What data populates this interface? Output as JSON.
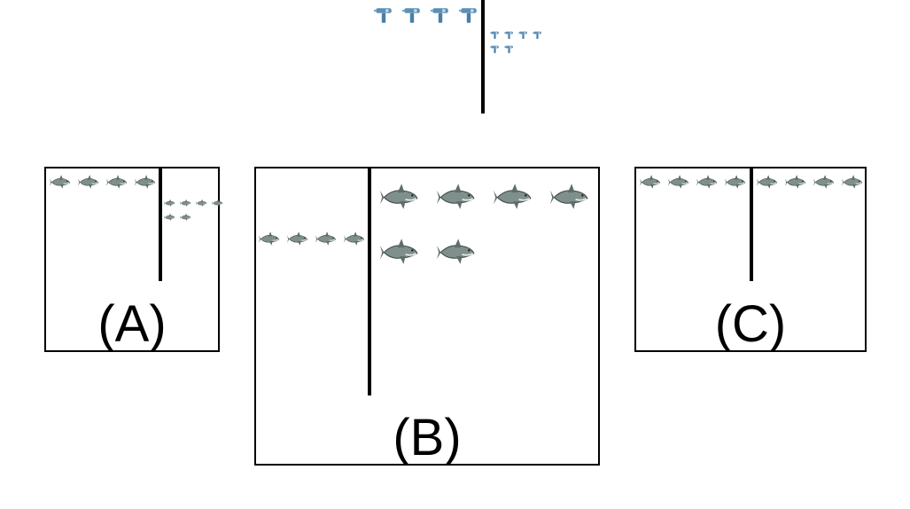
{
  "top": {
    "item_icon": "drill-icon",
    "left_group_count": 4,
    "right_group_count": 6
  },
  "panels": [
    {
      "id": "A",
      "label": "(A)",
      "item_icon": "shark-icon",
      "left_count": 4,
      "right_count": 6
    },
    {
      "id": "B",
      "label": "(B)",
      "item_icon": "shark-icon",
      "left_count": 4,
      "right_count": 6
    },
    {
      "id": "C",
      "label": "(C)",
      "item_icon": "shark-icon",
      "left_count": 4,
      "right_count": 4
    }
  ]
}
